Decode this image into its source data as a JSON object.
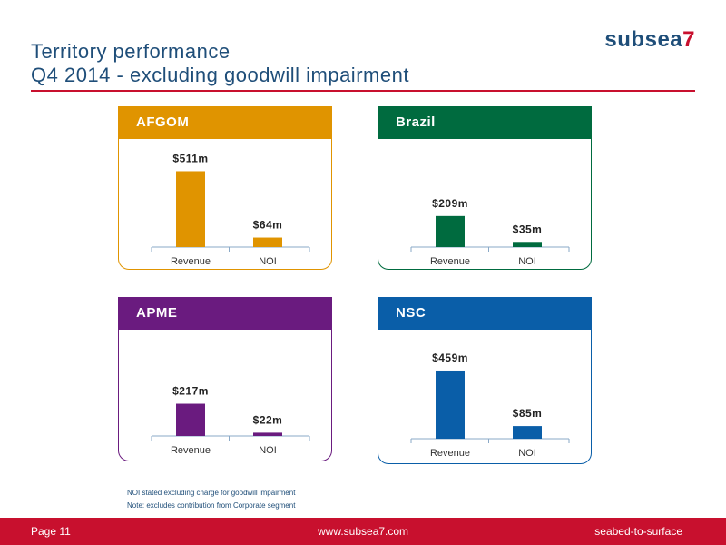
{
  "header": {
    "title_line1": "Territory performance",
    "title_line2": "Q4 2014 - excluding goodwill impairment",
    "logo_text": "subsea",
    "logo_number": "7"
  },
  "colors": {
    "brand_blue": "#1f4e79",
    "brand_red": "#c8102e"
  },
  "chart_data": [
    {
      "type": "bar",
      "title": "AFGOM",
      "color": "#e09400",
      "categories": [
        "Revenue",
        "NOI"
      ],
      "values": [
        511,
        64
      ],
      "value_labels": [
        "$511m",
        "$64m"
      ],
      "ylim": [
        0,
        520
      ]
    },
    {
      "type": "bar",
      "title": "Brazil",
      "color": "#006b3f",
      "categories": [
        "Revenue",
        "NOI"
      ],
      "values": [
        209,
        35
      ],
      "value_labels": [
        "$209m",
        "$35m"
      ],
      "ylim": [
        0,
        520
      ]
    },
    {
      "type": "bar",
      "title": "APME",
      "color": "#6a1b7f",
      "categories": [
        "Revenue",
        "NOI"
      ],
      "values": [
        217,
        22
      ],
      "value_labels": [
        "$217m",
        "$22m"
      ],
      "ylim": [
        0,
        520
      ]
    },
    {
      "type": "bar",
      "title": "NSC",
      "color": "#0a5ea8",
      "categories": [
        "Revenue",
        "NOI"
      ],
      "values": [
        459,
        85
      ],
      "value_labels": [
        "$459m",
        "$85m"
      ],
      "ylim": [
        0,
        520
      ]
    }
  ],
  "footnotes": {
    "line1": "NOI stated excluding charge for goodwill impairment",
    "line2": "Note: excludes contribution from Corporate segment"
  },
  "footer": {
    "page": "Page  11",
    "site": "www.subsea7.com",
    "tagline": "seabed-to-surface"
  }
}
